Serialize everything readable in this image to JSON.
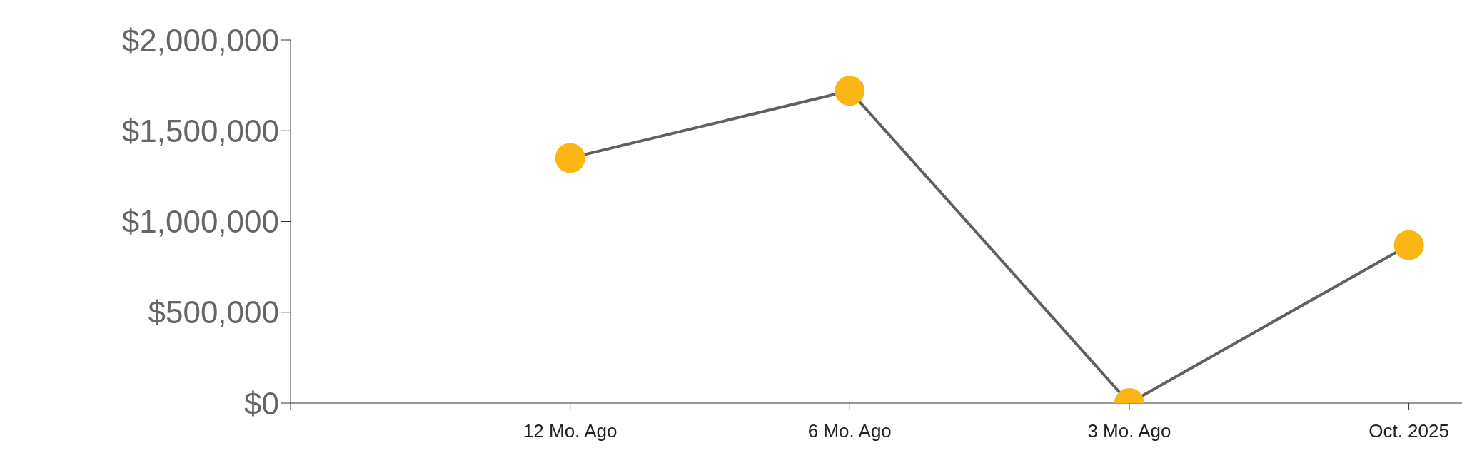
{
  "chart_data": {
    "type": "line",
    "categories": [
      null,
      "12 Mo. Ago",
      "6 Mo. Ago",
      "3 Mo. Ago",
      "Oct. 2025"
    ],
    "series": [
      {
        "color": "#606060",
        "colors": [
          null,
          "#fbb614",
          "#fbb614",
          "#fbb614",
          "#fbb614"
        ],
        "values": [
          null,
          1350000,
          1720000,
          0,
          870000
        ]
      }
    ],
    "ylim": [
      0,
      2000000
    ],
    "yticks": [
      {
        "value": 0,
        "label": "$0"
      },
      {
        "value": 500000,
        "label": "$500,000"
      },
      {
        "value": 1000000,
        "label": "$1,000,000"
      },
      {
        "value": 1500000,
        "label": "$1,500,000"
      },
      {
        "value": 2000000,
        "label": "$2,000,000"
      }
    ],
    "grid": false,
    "legend": false,
    "marker": "circle",
    "line_style": "solid"
  }
}
